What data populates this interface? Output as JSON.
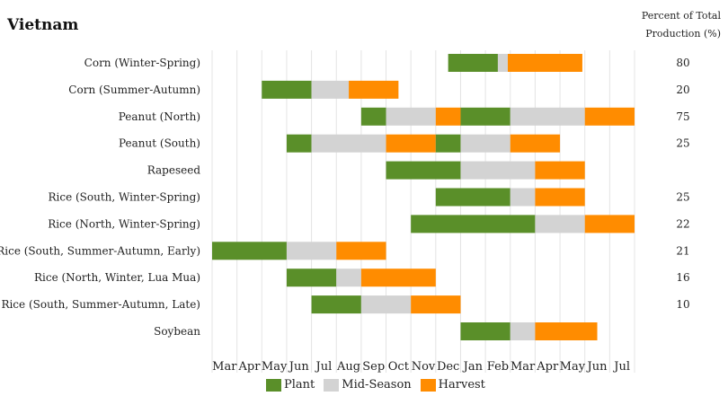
{
  "title": "Vietnam",
  "pct_header": [
    "Percent of Total",
    "Production (%)"
  ],
  "colors": {
    "plant": "#5a8f29",
    "mid": "#d3d3d3",
    "harvest": "#ff8c00",
    "grid": "#e4e4e4"
  },
  "legend": [
    {
      "key": "plant",
      "label": "Plant"
    },
    {
      "key": "mid",
      "label": "Mid-Season"
    },
    {
      "key": "harvest",
      "label": "Harvest"
    }
  ],
  "chart_data": {
    "type": "gantt",
    "x_ticks": [
      "Mar",
      "Apr",
      "May",
      "Jun",
      "Jul",
      "Aug",
      "Sep",
      "Oct",
      "Nov",
      "Dec",
      "Jan",
      "Feb",
      "Mar",
      "Apr",
      "May",
      "Jun",
      "Jul"
    ],
    "x_range": [
      0,
      17
    ],
    "rows": [
      {
        "label": "Corn (Winter-Spring)",
        "percent": "80",
        "segments": [
          {
            "phase": "plant",
            "start": 9.5,
            "end": 11.5
          },
          {
            "phase": "mid",
            "start": 11.5,
            "end": 11.9
          },
          {
            "phase": "harvest",
            "start": 11.9,
            "end": 14.9
          }
        ]
      },
      {
        "label": "Corn (Summer-Autumn)",
        "percent": "20",
        "segments": [
          {
            "phase": "plant",
            "start": 2.0,
            "end": 4.0
          },
          {
            "phase": "mid",
            "start": 4.0,
            "end": 5.5
          },
          {
            "phase": "harvest",
            "start": 5.5,
            "end": 7.5
          }
        ]
      },
      {
        "label": "Peanut (North)",
        "percent": "75",
        "segments": [
          {
            "phase": "plant",
            "start": 6.0,
            "end": 7.0
          },
          {
            "phase": "mid",
            "start": 7.0,
            "end": 9.0
          },
          {
            "phase": "harvest",
            "start": 9.0,
            "end": 10.0
          },
          {
            "phase": "plant",
            "start": 10.0,
            "end": 12.0
          },
          {
            "phase": "mid",
            "start": 12.0,
            "end": 15.0
          },
          {
            "phase": "harvest",
            "start": 15.0,
            "end": 17.0
          }
        ]
      },
      {
        "label": "Peanut (South)",
        "percent": "25",
        "segments": [
          {
            "phase": "plant",
            "start": 3.0,
            "end": 4.0
          },
          {
            "phase": "mid",
            "start": 4.0,
            "end": 7.0
          },
          {
            "phase": "harvest",
            "start": 7.0,
            "end": 9.0
          },
          {
            "phase": "plant",
            "start": 9.0,
            "end": 10.0
          },
          {
            "phase": "mid",
            "start": 10.0,
            "end": 12.0
          },
          {
            "phase": "harvest",
            "start": 12.0,
            "end": 14.0
          }
        ]
      },
      {
        "label": "Rapeseed",
        "percent": "",
        "segments": [
          {
            "phase": "plant",
            "start": 7.0,
            "end": 10.0
          },
          {
            "phase": "mid",
            "start": 10.0,
            "end": 13.0
          },
          {
            "phase": "harvest",
            "start": 13.0,
            "end": 15.0
          }
        ]
      },
      {
        "label": "Rice (South, Winter-Spring)",
        "percent": "25",
        "segments": [
          {
            "phase": "plant",
            "start": 9.0,
            "end": 12.0
          },
          {
            "phase": "mid",
            "start": 12.0,
            "end": 13.0
          },
          {
            "phase": "harvest",
            "start": 13.0,
            "end": 15.0
          }
        ]
      },
      {
        "label": "Rice (North, Winter-Spring)",
        "percent": "22",
        "segments": [
          {
            "phase": "plant",
            "start": 8.0,
            "end": 13.0
          },
          {
            "phase": "mid",
            "start": 13.0,
            "end": 15.0
          },
          {
            "phase": "harvest",
            "start": 15.0,
            "end": 17.0
          }
        ]
      },
      {
        "label": "Rice (South, Summer-Autumn, Early)",
        "percent": "21",
        "segments": [
          {
            "phase": "plant",
            "start": 0.0,
            "end": 3.0
          },
          {
            "phase": "mid",
            "start": 3.0,
            "end": 5.0
          },
          {
            "phase": "harvest",
            "start": 5.0,
            "end": 7.0
          }
        ]
      },
      {
        "label": "Rice (North, Winter, Lua Mua)",
        "percent": "16",
        "segments": [
          {
            "phase": "plant",
            "start": 3.0,
            "end": 5.0
          },
          {
            "phase": "mid",
            "start": 5.0,
            "end": 6.0
          },
          {
            "phase": "harvest",
            "start": 6.0,
            "end": 9.0
          }
        ]
      },
      {
        "label": "Rice (South, Summer-Autumn, Late)",
        "percent": "10",
        "segments": [
          {
            "phase": "plant",
            "start": 4.0,
            "end": 6.0
          },
          {
            "phase": "mid",
            "start": 6.0,
            "end": 8.0
          },
          {
            "phase": "harvest",
            "start": 8.0,
            "end": 10.0
          }
        ]
      },
      {
        "label": "Soybean",
        "percent": "",
        "segments": [
          {
            "phase": "plant",
            "start": 10.0,
            "end": 12.0
          },
          {
            "phase": "mid",
            "start": 12.0,
            "end": 13.0
          },
          {
            "phase": "harvest",
            "start": 13.0,
            "end": 15.5
          }
        ]
      }
    ]
  }
}
